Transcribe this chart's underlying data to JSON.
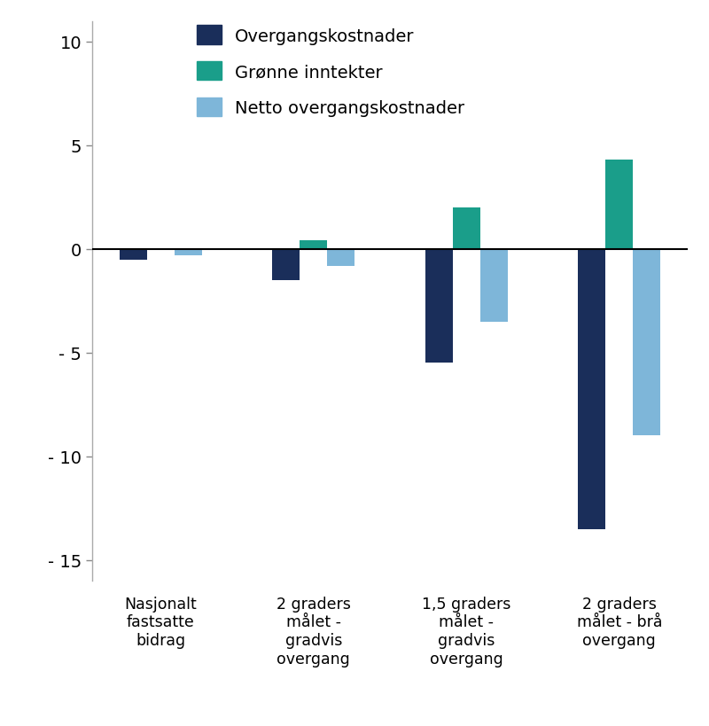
{
  "categories": [
    "Nasjonalt\nfastsatte\nbidrag",
    "2 graders\nmålet -\ngradvis\novergang",
    "1,5 graders\nmålet -\ngradvis\novergang",
    "2 graders\nmålet - brå\novergang"
  ],
  "overgangskostnader": [
    -0.5,
    -1.5,
    -5.5,
    -13.5
  ],
  "gronne_inntekter": [
    0.05,
    0.4,
    2.0,
    4.3
  ],
  "netto_overgangskostnader": [
    -0.3,
    -0.8,
    -3.5,
    -9.0
  ],
  "colors": {
    "overgangskostnader": "#1a2e5a",
    "gronne_inntekter": "#1a9e8a",
    "netto_overgangskostnader": "#7eb6d9"
  },
  "legend_labels": [
    "Overgangskostnader",
    "Grønne inntekter",
    "Netto overgangskostnader"
  ],
  "ylim": [
    -16,
    11
  ],
  "yticks": [
    -15,
    -10,
    -5,
    0,
    5,
    10
  ],
  "ytick_labels": [
    "- 15",
    "- 10",
    "- 5",
    "0",
    "5",
    "10"
  ],
  "bar_width": 0.18,
  "background_color": "#ffffff",
  "spine_color": "#aaaaaa",
  "tick_color": "#888888"
}
